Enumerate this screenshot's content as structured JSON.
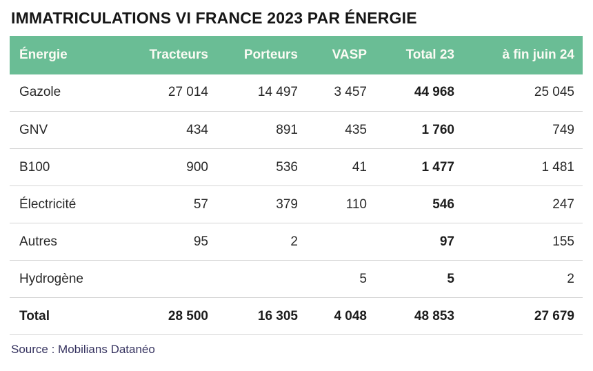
{
  "title": "IMMATRICULATIONS VI FRANCE 2023 PAR ÉNERGIE",
  "table": {
    "columns": [
      "Énergie",
      "Tracteurs",
      "Porteurs",
      "VASP",
      "Total 23",
      "à fin juin 24"
    ],
    "rows": [
      {
        "label": "Gazole",
        "values": [
          "27 014",
          "14 497",
          "3 457",
          "44 968",
          "25 045"
        ]
      },
      {
        "label": "GNV",
        "values": [
          "434",
          "891",
          "435",
          "1 760",
          "749"
        ]
      },
      {
        "label": "B100",
        "values": [
          "900",
          "536",
          "41",
          "1 477",
          "1 481"
        ]
      },
      {
        "label": "Électricité",
        "values": [
          "57",
          "379",
          "110",
          "546",
          "247"
        ]
      },
      {
        "label": "Autres",
        "values": [
          "95",
          "2",
          "",
          "97",
          "155"
        ]
      },
      {
        "label": "Hydrogène",
        "values": [
          "",
          "",
          "5",
          "5",
          "2"
        ]
      }
    ],
    "total_row": {
      "label": "Total",
      "values": [
        "28 500",
        "16 305",
        "4 048",
        "48 853",
        "27 679"
      ]
    }
  },
  "source": "Source : Mobilians Datanéo",
  "colors": {
    "header_bg": "#6ABD95",
    "header_text": "#FBFBF4",
    "title_text": "#161616",
    "body_text": "#282828",
    "divider": "#D5D5D5",
    "source_text": "#35325F"
  },
  "chart_data": {
    "type": "table",
    "title": "IMMATRICULATIONS VI FRANCE 2023 PAR ÉNERGIE",
    "columns": [
      "Énergie",
      "Tracteurs",
      "Porteurs",
      "VASP",
      "Total 23",
      "à fin juin 24"
    ],
    "rows": [
      [
        "Gazole",
        27014,
        14497,
        3457,
        44968,
        25045
      ],
      [
        "GNV",
        434,
        891,
        435,
        1760,
        749
      ],
      [
        "B100",
        900,
        536,
        41,
        1477,
        1481
      ],
      [
        "Électricité",
        57,
        379,
        110,
        546,
        247
      ],
      [
        "Autres",
        95,
        2,
        null,
        97,
        155
      ],
      [
        "Hydrogène",
        null,
        null,
        5,
        5,
        2
      ],
      [
        "Total",
        28500,
        16305,
        4048,
        48853,
        27679
      ]
    ],
    "source": "Source : Mobilians Datanéo"
  }
}
